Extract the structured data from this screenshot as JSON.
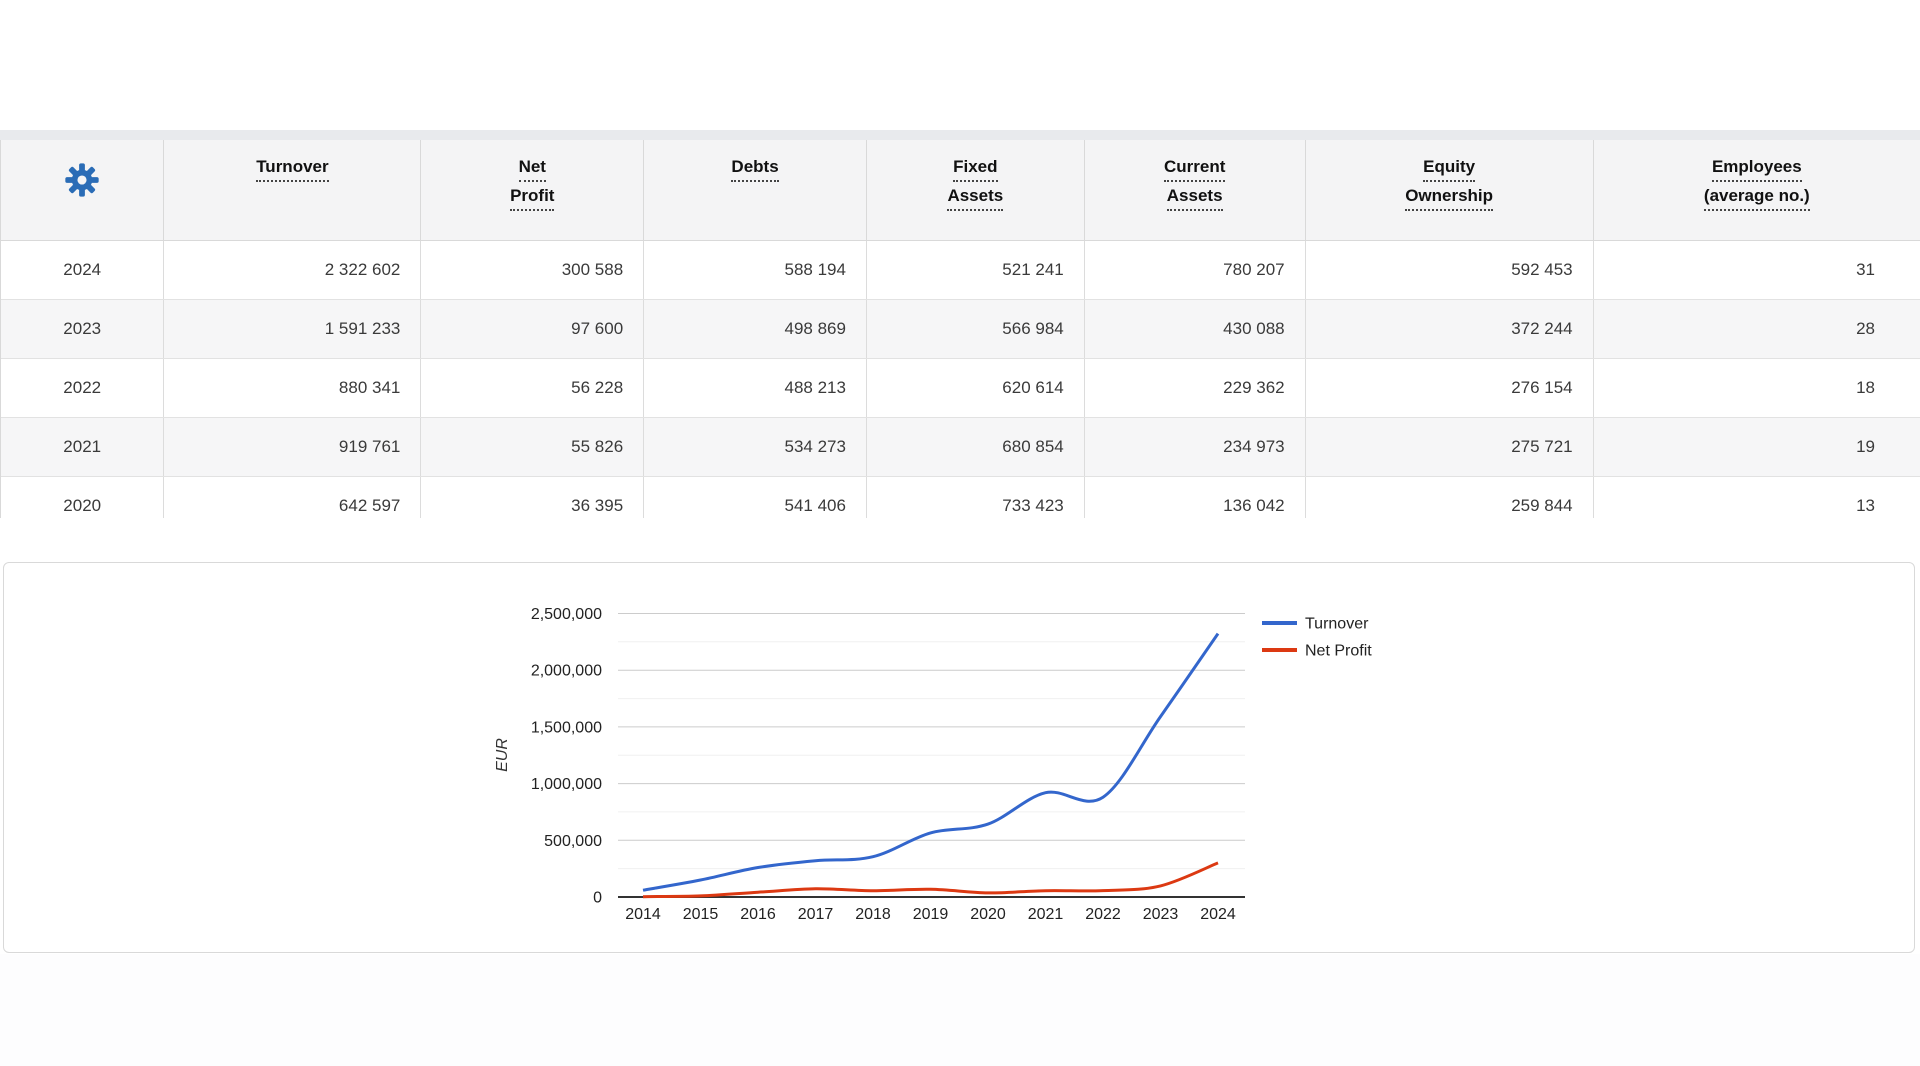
{
  "table": {
    "accent_color": "#2a6cb6",
    "columns": [
      {
        "key": "settings",
        "icon": "gear-icon",
        "lines": [],
        "width": "8.49%"
      },
      {
        "key": "turnover",
        "lines": [
          "Turnover"
        ],
        "width": "13.39%"
      },
      {
        "key": "net_profit",
        "lines": [
          "Net",
          "Profit"
        ],
        "width": "11.61%"
      },
      {
        "key": "debts",
        "lines": [
          "Debts"
        ],
        "width": "11.61%"
      },
      {
        "key": "fixed_assets",
        "lines": [
          "Fixed",
          "Assets"
        ],
        "width": "11.35%"
      },
      {
        "key": "current_assets",
        "lines": [
          "Current",
          "Assets"
        ],
        "width": "11.51%"
      },
      {
        "key": "equity_ownership",
        "lines": [
          "Equity",
          "Ownership"
        ],
        "width": "15.01%"
      },
      {
        "key": "employees",
        "lines": [
          "Employees",
          "(average no.)"
        ],
        "width": "17.03%"
      }
    ],
    "rows": [
      {
        "year": "2024",
        "values": [
          "2 322 602",
          "300 588",
          "588 194",
          "521 241",
          "780 207",
          "592 453",
          "31"
        ]
      },
      {
        "year": "2023",
        "values": [
          "1 591 233",
          "97 600",
          "498 869",
          "566 984",
          "430 088",
          "372 244",
          "28"
        ]
      },
      {
        "year": "2022",
        "values": [
          "880 341",
          "56 228",
          "488 213",
          "620 614",
          "229 362",
          "276 154",
          "18"
        ]
      },
      {
        "year": "2021",
        "values": [
          "919 761",
          "55 826",
          "534 273",
          "680 854",
          "234 973",
          "275 721",
          "19"
        ]
      },
      {
        "year": "2020",
        "values": [
          "642 597",
          "36 395",
          "541 406",
          "733 423",
          "136 042",
          "259 844",
          "13"
        ]
      }
    ]
  },
  "chart_data": {
    "type": "line",
    "x": [
      2014,
      2015,
      2016,
      2017,
      2018,
      2019,
      2020,
      2021,
      2022,
      2023,
      2024
    ],
    "series": [
      {
        "name": "Turnover",
        "color": "#3366cc",
        "values": [
          60000,
          150000,
          260000,
          320000,
          355000,
          565000,
          642597,
          919761,
          880341,
          1591233,
          2322602
        ]
      },
      {
        "name": "Net Profit",
        "color": "#dc3912",
        "values": [
          3000,
          10000,
          42000,
          72000,
          55000,
          68000,
          36395,
          55826,
          56228,
          97600,
          300588
        ]
      }
    ],
    "ylabel": "EUR",
    "ylim": [
      0,
      2500000
    ],
    "yticks": [
      0,
      500000,
      1000000,
      1500000,
      2000000,
      2500000
    ],
    "ytick_labels": [
      "0",
      "500,000",
      "1,000,000",
      "1,500,000",
      "2,000,000",
      "2,500,000"
    ],
    "curve": "smooth",
    "grid": true,
    "legend_position": "right"
  }
}
